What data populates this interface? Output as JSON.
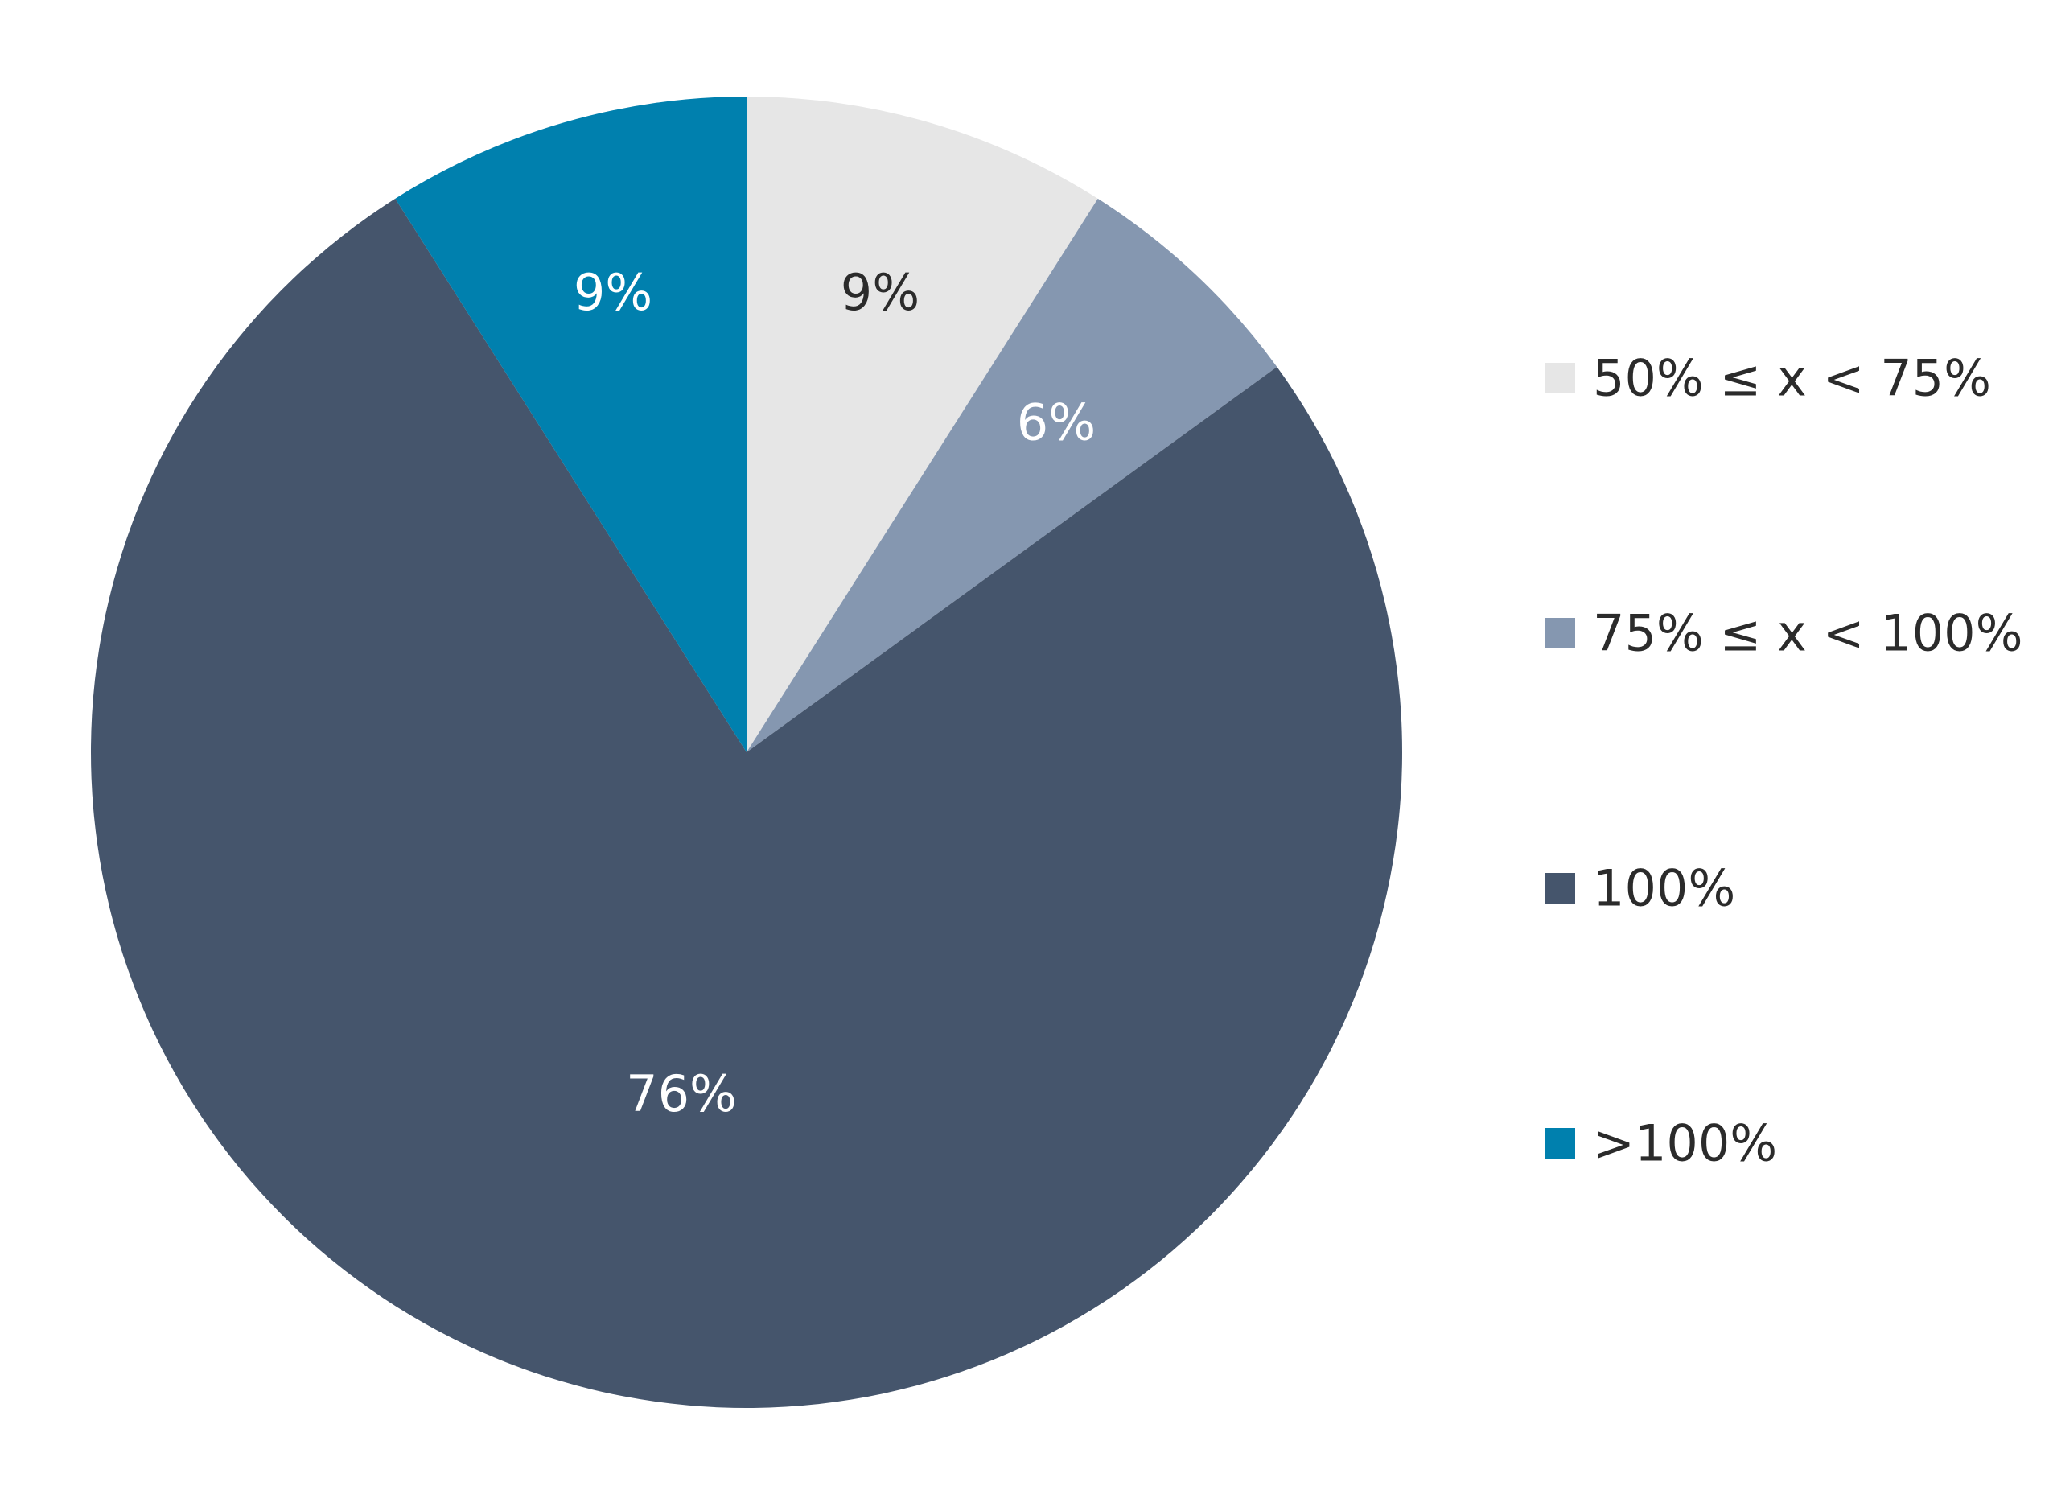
{
  "chart_data": {
    "type": "pie",
    "slices": [
      {
        "name": "50% ≤ x < 75%",
        "value": 9,
        "label": "9%",
        "color": "#e6e6e6",
        "label_color": "#2b2b2b"
      },
      {
        "name": "75% ≤ x < 100%",
        "value": 6,
        "label": "6%",
        "color": "#8597b0",
        "label_color": "#ffffff"
      },
      {
        "name": "100%",
        "value": 76,
        "label": "76%",
        "color": "#45556c",
        "label_color": "#ffffff"
      },
      {
        "name": ">100%",
        "value": 9,
        "label": "9%",
        "color": "#0080ae",
        "label_color": "#ffffff"
      }
    ],
    "start_angle": "12 o'clock",
    "direction": "clockwise",
    "legend_position": "right"
  }
}
